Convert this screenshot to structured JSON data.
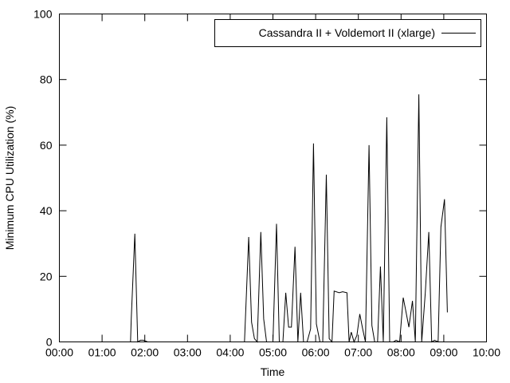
{
  "chart_data": {
    "type": "line",
    "xlabel": "Time",
    "ylabel": "Minimum CPU Utilization (%)",
    "xlim": [
      0,
      600
    ],
    "ylim": [
      0,
      100
    ],
    "xticks": [
      {
        "value": 0,
        "label": "00:00"
      },
      {
        "value": 60,
        "label": "01:00"
      },
      {
        "value": 120,
        "label": "02:00"
      },
      {
        "value": 180,
        "label": "03:00"
      },
      {
        "value": 240,
        "label": "04:00"
      },
      {
        "value": 300,
        "label": "05:00"
      },
      {
        "value": 360,
        "label": "06:00"
      },
      {
        "value": 420,
        "label": "07:00"
      },
      {
        "value": 480,
        "label": "08:00"
      },
      {
        "value": 540,
        "label": "09:00"
      },
      {
        "value": 600,
        "label": "10:00"
      }
    ],
    "yticks": [
      0,
      20,
      40,
      60,
      80,
      100
    ],
    "grid": false,
    "legend": "top-right",
    "series": [
      {
        "name": "Cassandra II + Voldemort II (xlarge)",
        "color": "#000000",
        "points": [
          [
            0,
            0
          ],
          [
            90,
            0
          ],
          [
            100,
            0
          ],
          [
            101,
            7
          ],
          [
            106,
            33
          ],
          [
            110,
            0
          ],
          [
            114,
            0.5
          ],
          [
            118,
            0.5
          ],
          [
            124,
            0
          ],
          [
            200,
            0
          ],
          [
            240,
            0
          ],
          [
            260,
            0
          ],
          [
            266,
            32
          ],
          [
            270,
            6
          ],
          [
            274,
            1
          ],
          [
            278,
            0
          ],
          [
            283,
            33.5
          ],
          [
            287,
            7
          ],
          [
            291,
            0
          ],
          [
            296,
            0
          ],
          [
            300,
            0
          ],
          [
            305,
            36
          ],
          [
            309,
            0
          ],
          [
            314,
            0
          ],
          [
            318,
            15
          ],
          [
            322,
            4.5
          ],
          [
            326,
            4.5
          ],
          [
            331,
            29
          ],
          [
            335,
            0
          ],
          [
            339,
            15
          ],
          [
            343,
            0
          ],
          [
            348,
            0
          ],
          [
            353,
            4
          ],
          [
            357,
            60.5
          ],
          [
            361,
            5.5
          ],
          [
            366,
            0
          ],
          [
            370,
            0
          ],
          [
            375,
            51
          ],
          [
            379,
            1
          ],
          [
            383,
            0
          ],
          [
            386,
            15.5
          ],
          [
            393,
            15
          ],
          [
            398,
            15.3
          ],
          [
            404,
            15
          ],
          [
            407,
            0
          ],
          [
            410,
            3
          ],
          [
            414,
            0
          ],
          [
            418,
            2
          ],
          [
            422,
            8.5
          ],
          [
            426,
            4
          ],
          [
            430,
            0
          ],
          [
            435,
            60
          ],
          [
            439,
            5
          ],
          [
            443,
            0
          ],
          [
            447,
            0
          ],
          [
            451,
            23
          ],
          [
            455,
            0
          ],
          [
            460,
            68.5
          ],
          [
            464,
            0
          ],
          [
            469,
            0
          ],
          [
            473,
            0.5
          ],
          [
            478,
            0
          ],
          [
            483,
            13.5
          ],
          [
            487,
            9
          ],
          [
            491,
            4.5
          ],
          [
            496,
            12.5
          ],
          [
            500,
            0
          ],
          [
            505,
            75.5
          ],
          [
            509,
            0
          ],
          [
            514,
            15
          ],
          [
            519,
            33.5
          ],
          [
            523,
            0
          ],
          [
            527,
            0.5
          ],
          [
            532,
            0
          ],
          [
            536,
            35
          ],
          [
            541,
            43.5
          ],
          [
            545,
            9
          ]
        ]
      }
    ]
  }
}
